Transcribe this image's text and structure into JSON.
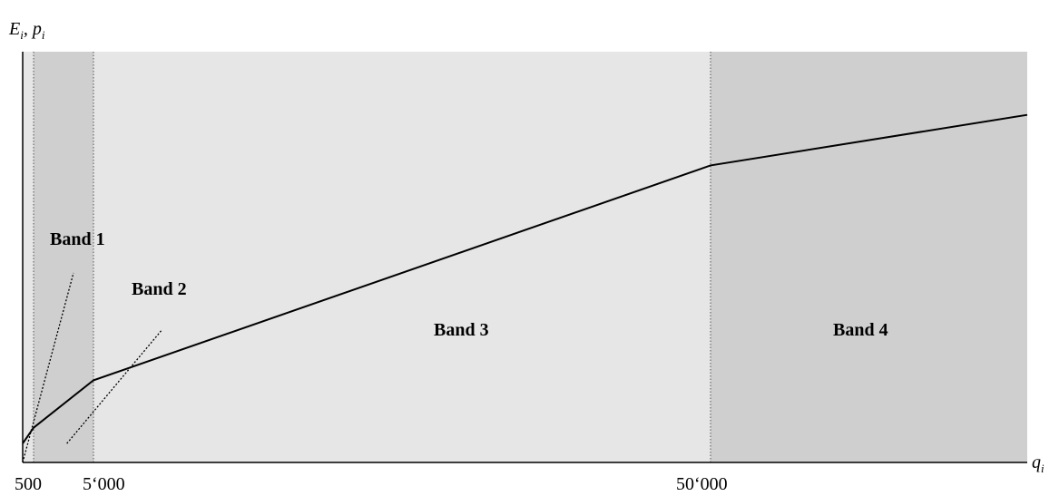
{
  "chart_data": {
    "type": "line",
    "title": "",
    "ylabel": {
      "main": "E",
      "sub1": "i",
      "sep": ", p",
      "sub2": "i"
    },
    "xlabel": {
      "main": "q",
      "sub": "i"
    },
    "x_ticks": [
      "500",
      "5‘000",
      "50‘000"
    ],
    "x_breakpoints_units": [
      500,
      5000,
      50000
    ],
    "series": [
      {
        "values": [
          {
            "x": 0,
            "y": 0.06
          },
          {
            "x": 500,
            "y": 0.11
          },
          {
            "x": 5000,
            "y": 0.26
          },
          {
            "x": 50000,
            "y": 0.94
          },
          {
            "x": 75000,
            "y": 1.1
          }
        ]
      }
    ],
    "band_1_tangent": [
      {
        "x": 0,
        "y": 0.0
      },
      {
        "x": 3500,
        "y": 0.6
      }
    ],
    "band_2_tangent": [
      {
        "x": 3000,
        "y": 0.06
      },
      {
        "x": 10000,
        "y": 0.42
      }
    ],
    "bands": [
      {
        "label": "Band 1",
        "x_from": 0,
        "x_to": 500,
        "color": "#e6e6e6"
      },
      {
        "label": "Band 2",
        "x_from": 500,
        "x_to": 5000,
        "color": "#cfcfcf"
      },
      {
        "label": "Band 3",
        "x_from": 5000,
        "x_to": 50000,
        "color": "#e6e6e6"
      },
      {
        "label": "Band 4",
        "x_from": 50000,
        "x_to": 75000,
        "color": "#cfcfcf"
      }
    ],
    "ylim": [
      0,
      1.3
    ],
    "grid": false,
    "legend": "none"
  }
}
